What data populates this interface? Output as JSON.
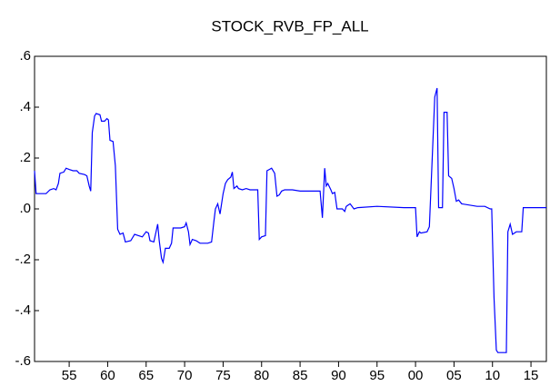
{
  "chart_data": {
    "type": "line",
    "title": "STOCK_RVB_FP_ALL",
    "x": [
      1950.5,
      1950.7,
      1952.0,
      1952.5,
      1953.0,
      1953.3,
      1953.6,
      1953.8,
      1954.3,
      1954.6,
      1955.0,
      1955.5,
      1956.0,
      1956.3,
      1957.0,
      1957.3,
      1957.6,
      1957.8,
      1958.0,
      1958.3,
      1958.5,
      1959.0,
      1959.2,
      1959.6,
      1959.9,
      1960.1,
      1960.3,
      1960.7,
      1961.0,
      1961.3,
      1961.6,
      1962.0,
      1962.3,
      1963.0,
      1963.5,
      1964.0,
      1964.5,
      1965.0,
      1965.3,
      1965.5,
      1966.0,
      1966.5,
      1966.7,
      1967.0,
      1967.2,
      1967.5,
      1968.0,
      1968.3,
      1968.5,
      1969.0,
      1969.5,
      1970.0,
      1970.2,
      1970.5,
      1970.7,
      1971.0,
      1971.5,
      1972.0,
      1973.0,
      1973.5,
      1973.8,
      1974.0,
      1974.3,
      1974.6,
      1975.0,
      1975.3,
      1975.6,
      1976.0,
      1976.2,
      1976.4,
      1976.8,
      1977.0,
      1977.5,
      1978.0,
      1978.5,
      1979.0,
      1979.5,
      1979.7,
      1980.0,
      1980.5,
      1980.7,
      1981.0,
      1981.3,
      1981.7,
      1982.0,
      1982.3,
      1982.6,
      1983.0,
      1984.0,
      1985.0,
      1986.0,
      1987.0,
      1987.6,
      1987.9,
      1988.2,
      1988.4,
      1988.6,
      1989.0,
      1989.2,
      1989.5,
      1989.8,
      1990.5,
      1990.8,
      1991.0,
      1991.5,
      1992.0,
      1992.5,
      1995.0,
      1998.5,
      2000.0,
      2000.2,
      2000.5,
      2000.7,
      2001.5,
      2001.8,
      2002.5,
      2002.8,
      2003.0,
      2003.5,
      2003.7,
      2004.1,
      2004.3,
      2004.7,
      2005.0,
      2005.3,
      2005.6,
      2006.0,
      2008.0,
      2009.0,
      2009.7,
      2009.9,
      2010.2,
      2010.5,
      2010.7,
      2011.8,
      2012.0,
      2012.3,
      2012.6,
      2013.1,
      2013.8,
      2014.0,
      2017.0
    ],
    "series": [
      {
        "name": "STOCK_RVB_FP_ALL",
        "color": "#0000ff",
        "values": [
          0.15,
          0.06,
          0.06,
          0.075,
          0.08,
          0.075,
          0.1,
          0.14,
          0.145,
          0.16,
          0.155,
          0.15,
          0.15,
          0.14,
          0.135,
          0.13,
          0.09,
          0.07,
          0.3,
          0.365,
          0.375,
          0.37,
          0.345,
          0.345,
          0.355,
          0.35,
          0.27,
          0.265,
          0.17,
          -0.08,
          -0.1,
          -0.095,
          -0.13,
          -0.125,
          -0.1,
          -0.105,
          -0.11,
          -0.09,
          -0.095,
          -0.125,
          -0.13,
          -0.06,
          -0.125,
          -0.195,
          -0.21,
          -0.155,
          -0.155,
          -0.135,
          -0.075,
          -0.075,
          -0.075,
          -0.07,
          -0.055,
          -0.09,
          -0.14,
          -0.12,
          -0.125,
          -0.135,
          -0.135,
          -0.13,
          -0.05,
          0.0,
          0.02,
          -0.02,
          0.06,
          0.1,
          0.115,
          0.125,
          0.145,
          0.08,
          0.09,
          0.08,
          0.075,
          0.08,
          0.075,
          0.075,
          0.075,
          -0.12,
          -0.11,
          -0.105,
          0.15,
          0.155,
          0.16,
          0.14,
          0.05,
          0.055,
          0.07,
          0.075,
          0.075,
          0.07,
          0.07,
          0.07,
          0.07,
          -0.035,
          0.16,
          0.09,
          0.1,
          0.075,
          0.06,
          0.065,
          0.0,
          0.0,
          -0.01,
          0.01,
          0.02,
          0.0,
          0.005,
          0.01,
          0.005,
          0.005,
          -0.11,
          -0.09,
          -0.095,
          -0.09,
          -0.07,
          0.44,
          0.475,
          0.005,
          0.005,
          0.38,
          0.38,
          0.13,
          0.12,
          0.08,
          0.03,
          0.035,
          0.02,
          0.01,
          0.01,
          0.0,
          0.0,
          -0.35,
          -0.555,
          -0.565,
          -0.565,
          -0.09,
          -0.06,
          -0.1,
          -0.09,
          -0.09,
          0.005,
          0.005
        ]
      }
    ],
    "xlim": [
      1950.5,
      2017.0
    ],
    "xticks": [
      {
        "value": 1955,
        "label": "55"
      },
      {
        "value": 1960,
        "label": "60"
      },
      {
        "value": 1965,
        "label": "65"
      },
      {
        "value": 1970,
        "label": "70"
      },
      {
        "value": 1975,
        "label": "75"
      },
      {
        "value": 1980,
        "label": "80"
      },
      {
        "value": 1985,
        "label": "85"
      },
      {
        "value": 1990,
        "label": "90"
      },
      {
        "value": 1995,
        "label": "95"
      },
      {
        "value": 2000,
        "label": "00"
      },
      {
        "value": 2005,
        "label": "05"
      },
      {
        "value": 2010,
        "label": "10"
      },
      {
        "value": 2015,
        "label": "15"
      }
    ],
    "ylim": [
      -0.6,
      0.6
    ],
    "yticks": [
      {
        "value": 0.6,
        "label": ".6"
      },
      {
        "value": 0.4,
        "label": ".4"
      },
      {
        "value": 0.2,
        "label": ".2"
      },
      {
        "value": 0.0,
        "label": ".0"
      },
      {
        "value": -0.2,
        "label": "-.2"
      },
      {
        "value": -0.4,
        "label": "-.4"
      },
      {
        "value": -0.6,
        "label": "-.6"
      }
    ],
    "grid": false
  }
}
